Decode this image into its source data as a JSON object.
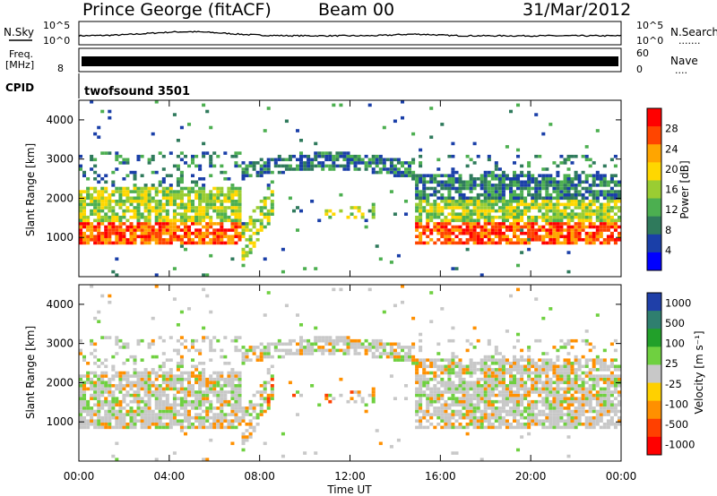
{
  "header": {
    "station": "Prince George (fitACF)",
    "beam": "Beam 00",
    "date": "31/Mar/2012"
  },
  "noise_panel": {
    "left_label": "N.Sky",
    "right_label": "N.Search",
    "right_dots": ".......",
    "tick_top": "10^5",
    "tick_bottom": "10^0"
  },
  "freq_panel": {
    "left_label_1": "Freq.",
    "left_label_2": "[MHz]",
    "left_tick": "8",
    "right_label": "Nave",
    "right_dots": "....",
    "right_tick_top": "60",
    "right_tick_bottom": "0"
  },
  "cpid": {
    "label": "CPID",
    "value": "twofsound 3501"
  },
  "chart_data": [
    {
      "type": "heatmap",
      "parameter": "power",
      "ylabel": "Slant Range [km]",
      "ylim": [
        0,
        4500
      ],
      "yticks": [
        "1000",
        "2000",
        "3000",
        "4000"
      ],
      "colorbar": {
        "label": "Power [dB]",
        "ticks": [
          "4",
          "8",
          "12",
          "16",
          "20",
          "24",
          "28"
        ],
        "range": [
          0,
          32
        ],
        "colors": [
          "#0000ff",
          "#1a3fa8",
          "#2f7a5c",
          "#4caf50",
          "#9acd32",
          "#ffd700",
          "#ffa500",
          "#ff4500",
          "#ff0000"
        ]
      }
    },
    {
      "type": "heatmap",
      "parameter": "velocity",
      "ylabel": "Slant Range [km]",
      "xlabel": "Time UT",
      "ylim": [
        0,
        4500
      ],
      "yticks": [
        "1000",
        "2000",
        "3000",
        "4000"
      ],
      "xticks": [
        "00:00",
        "04:00",
        "08:00",
        "12:00",
        "16:00",
        "20:00",
        "00:00"
      ],
      "colorbar": {
        "label": "Velocity [m s⁻¹]",
        "ticks": [
          "1000",
          "500",
          "100",
          "25",
          "-25",
          "-100",
          "-500",
          "-1000"
        ],
        "colors": [
          "#1f3fa8",
          "#2f7f6f",
          "#22a02a",
          "#6fd040",
          "#c8c8c8",
          "#ffd000",
          "#ff9000",
          "#ff4000",
          "#ff0000"
        ]
      }
    }
  ]
}
